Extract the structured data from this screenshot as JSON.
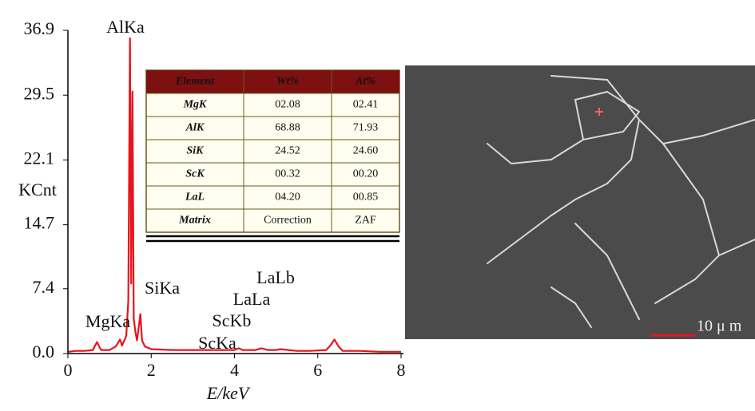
{
  "chart_data": {
    "type": "line",
    "x_label": "E/keV",
    "y_label": "KCnt",
    "x": [
      0,
      0.2,
      0.4,
      0.6,
      0.65,
      0.7,
      0.75,
      0.8,
      1.0,
      1.15,
      1.25,
      1.3,
      1.4,
      1.45,
      1.49,
      1.52,
      1.55,
      1.58,
      1.62,
      1.66,
      1.7,
      1.74,
      1.78,
      1.85,
      2.0,
      2.5,
      3.0,
      3.5,
      4.0,
      4.1,
      4.2,
      4.5,
      4.65,
      4.8,
      5.0,
      5.1,
      5.3,
      5.5,
      5.8,
      6.2,
      6.3,
      6.4,
      6.5,
      6.6,
      7.0,
      7.5,
      8.0
    ],
    "values": [
      0.2,
      0.3,
      0.3,
      0.4,
      0.9,
      1.3,
      0.8,
      0.4,
      0.4,
      0.8,
      1.6,
      0.9,
      2.0,
      6,
      36.0,
      8,
      29.9,
      4,
      2.5,
      1.5,
      3.0,
      4.5,
      1.5,
      0.8,
      0.5,
      0.4,
      0.4,
      0.4,
      0.4,
      0.6,
      0.4,
      0.4,
      0.6,
      0.4,
      0.4,
      0.5,
      0.4,
      0.3,
      0.3,
      0.4,
      0.9,
      1.6,
      0.8,
      0.3,
      0.3,
      0.2,
      0.2
    ],
    "color": "#e8141c",
    "xlim": [
      0,
      8
    ],
    "xticks": [
      0,
      2,
      4,
      6,
      8
    ],
    "ylim": [
      0,
      36.9
    ],
    "yticks": [
      {
        "value": 0,
        "label": "0.0"
      },
      7.4,
      14.7,
      22.1,
      29.5,
      36.9
    ],
    "annotations": [
      "AlKa",
      "SiKa",
      "MgKa",
      "ScKa",
      "ScKb",
      "LaLa",
      "LaLb"
    ]
  },
  "table": {
    "header": [
      "Element",
      "Wt%",
      "At%"
    ],
    "rows": [
      [
        "MgK",
        "02.08",
        "02.41"
      ],
      [
        "AlK",
        "68.88",
        "71.93"
      ],
      [
        "SiK",
        "24.52",
        "24.60"
      ],
      [
        "ScK",
        "00.32",
        "00.20"
      ],
      [
        "LaL",
        "04.20",
        "00.85"
      ],
      [
        "Matrix",
        "Correction",
        "ZAF"
      ]
    ]
  },
  "image": {
    "scale_bar": "10 μ m"
  }
}
